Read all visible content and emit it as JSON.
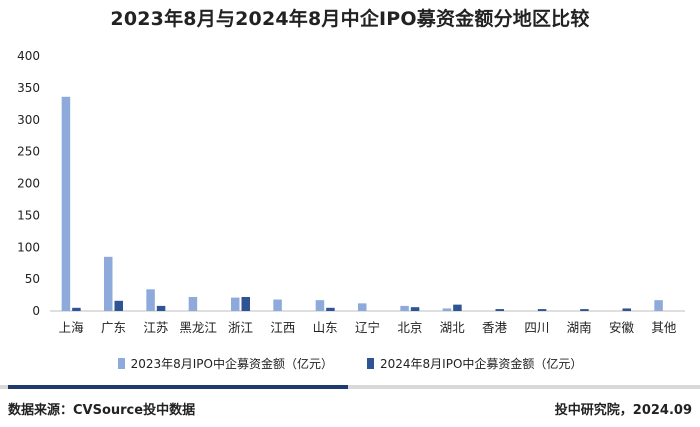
{
  "chart_data": {
    "type": "bar",
    "title": "2023年8月与2024年8月中企IPO募资金额分地区比较",
    "categories": [
      "上海",
      "广东",
      "江苏",
      "黑龙江",
      "浙江",
      "江西",
      "山东",
      "辽宁",
      "北京",
      "湖北",
      "香港",
      "四川",
      "湖南",
      "安徽",
      "其他"
    ],
    "series": [
      {
        "name": "2023年8月IPO中企募资金额（亿元）",
        "color": "#8eaadb",
        "values": [
          336,
          85,
          34,
          22,
          21,
          18,
          17,
          12,
          8,
          4,
          0,
          0,
          0,
          0,
          17
        ]
      },
      {
        "name": "2024年8月IPO中企募资金额（亿元）",
        "color": "#2f5496",
        "values": [
          5,
          16,
          8,
          0,
          22,
          0,
          5,
          0,
          6,
          10,
          3,
          3,
          3,
          4,
          0
        ]
      }
    ],
    "ylim": [
      0,
      400
    ],
    "yticks": [
      0,
      50,
      100,
      150,
      200,
      250,
      300,
      350,
      400
    ],
    "grid": false,
    "legend": "bottom"
  },
  "footer": {
    "source": "数据来源：CVSource投中数据",
    "publisher": "投中研究院，2024.09"
  }
}
